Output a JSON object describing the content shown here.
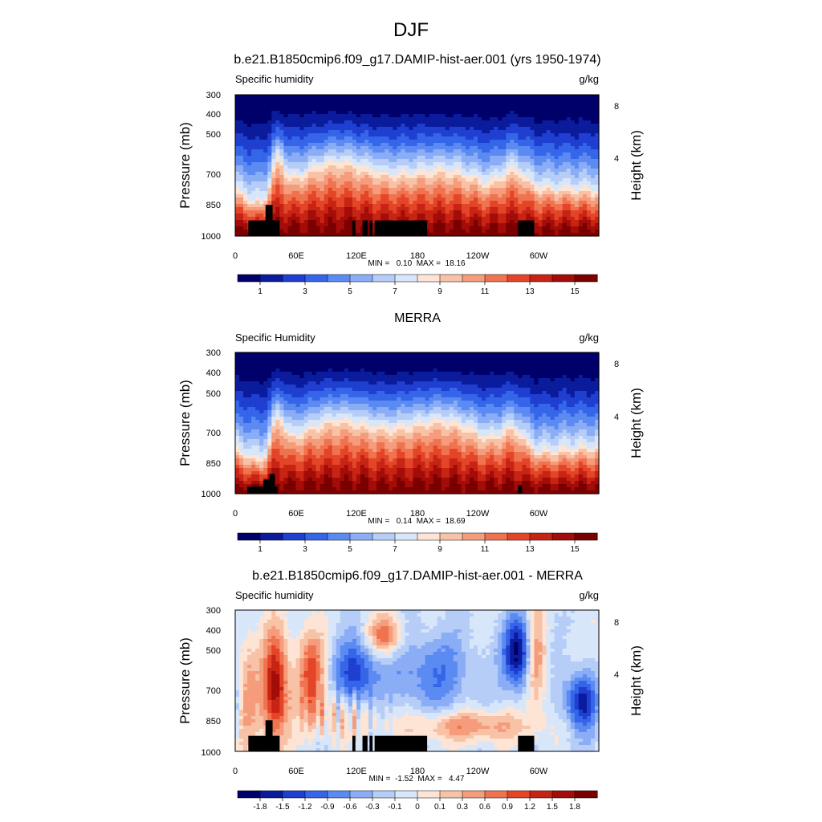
{
  "figure": {
    "title": "DJF"
  },
  "chart_data": [
    {
      "type": "heatmap",
      "title": "b.e21.B1850cmip6.f09_g17.DAMIP-hist-aer.001 (yrs 1950-1974)",
      "left_label": "Specific humidity",
      "right_label": "g/kg",
      "ylabel": "Pressure (mb)",
      "y2label": "Height (km)",
      "xticks": [
        "0",
        "60E",
        "120E",
        "180",
        "120W",
        "60W"
      ],
      "yticks": [
        "300",
        "400",
        "500",
        "700",
        "850",
        "1000"
      ],
      "y2ticks": [
        "8",
        "4"
      ],
      "stats": "MIN =   0.10  MAX =  18.16",
      "colorbar_labels": [
        "1",
        "3",
        "5",
        "7",
        "9",
        "11",
        "13",
        "15"
      ],
      "ylim": [
        300,
        1000
      ],
      "xlim": [
        0,
        360
      ],
      "colormap": [
        "#00006a",
        "#0a1c9c",
        "#1e3fd0",
        "#3565e8",
        "#5b8af2",
        "#8aadf6",
        "#b6cdf8",
        "#d8e6fa",
        "#fde4d4",
        "#f8c2a6",
        "#f59c7c",
        "#f0734f",
        "#e44528",
        "#c72414",
        "#a30c08",
        "#7a0000"
      ]
    },
    {
      "type": "heatmap",
      "title": "MERRA",
      "left_label": "Specific Humidity",
      "right_label": "g/kg",
      "ylabel": "Pressure (mb)",
      "y2label": "Height (km)",
      "xticks": [
        "0",
        "60E",
        "120E",
        "180",
        "120W",
        "60W"
      ],
      "yticks": [
        "300",
        "400",
        "500",
        "700",
        "850",
        "1000"
      ],
      "y2ticks": [
        "8",
        "4"
      ],
      "stats": "MIN =   0.14  MAX =  18.69",
      "colorbar_labels": [
        "1",
        "3",
        "5",
        "7",
        "9",
        "11",
        "13",
        "15"
      ],
      "ylim": [
        300,
        1000
      ],
      "xlim": [
        0,
        360
      ],
      "colormap": [
        "#00006a",
        "#0a1c9c",
        "#1e3fd0",
        "#3565e8",
        "#5b8af2",
        "#8aadf6",
        "#b6cdf8",
        "#d8e6fa",
        "#fde4d4",
        "#f8c2a6",
        "#f59c7c",
        "#f0734f",
        "#e44528",
        "#c72414",
        "#a30c08",
        "#7a0000"
      ]
    },
    {
      "type": "heatmap",
      "title": "b.e21.B1850cmip6.f09_g17.DAMIP-hist-aer.001 - MERRA",
      "left_label": "Specific humidity",
      "right_label": "g/kg",
      "ylabel": "Pressure (mb)",
      "y2label": "Height (km)",
      "xticks": [
        "0",
        "60E",
        "120E",
        "180",
        "120W",
        "60W"
      ],
      "yticks": [
        "300",
        "400",
        "500",
        "700",
        "850",
        "1000"
      ],
      "y2ticks": [
        "8",
        "4"
      ],
      "stats": "MIN =  -1.52  MAX =   4.47",
      "colorbar_labels": [
        "-1.8",
        "-1.5",
        "-1.2",
        "-0.9",
        "-0.6",
        "-0.3",
        "-0.1",
        "0",
        "0.1",
        "0.3",
        "0.6",
        "0.9",
        "1.2",
        "1.5",
        "1.8"
      ],
      "ylim": [
        300,
        1000
      ],
      "xlim": [
        0,
        360
      ],
      "colormap": [
        "#00006a",
        "#0a1c9c",
        "#1e3fd0",
        "#3565e8",
        "#5b8af2",
        "#8aadf6",
        "#b6cdf8",
        "#d8e6fa",
        "#fde4d4",
        "#f8c2a6",
        "#f59c7c",
        "#f0734f",
        "#e44528",
        "#c72414",
        "#a30c08",
        "#7a0000"
      ]
    }
  ]
}
